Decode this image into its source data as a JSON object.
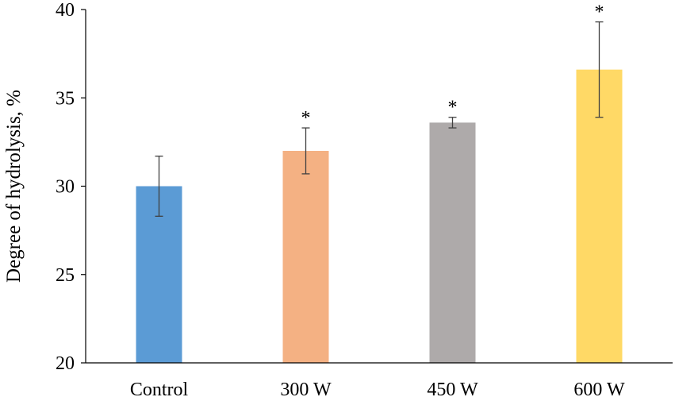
{
  "chart_data": {
    "type": "bar",
    "title": "",
    "xlabel": "",
    "ylabel": "Degree of hydrolysis, %",
    "ylim": [
      20,
      40
    ],
    "yticks": [
      20,
      25,
      30,
      35,
      40
    ],
    "grid": false,
    "categories": [
      "Control",
      "300 W",
      "450 W",
      "600 W"
    ],
    "values": [
      30.0,
      32.0,
      33.6,
      36.6
    ],
    "errors": [
      1.7,
      1.3,
      0.3,
      2.7
    ],
    "significance": [
      "",
      "*",
      "*",
      "*"
    ],
    "colors": [
      "#5b9bd5",
      "#f4b183",
      "#aeaaaa",
      "#ffd966"
    ],
    "error_color": "#404040",
    "axis_color": "#000000"
  }
}
